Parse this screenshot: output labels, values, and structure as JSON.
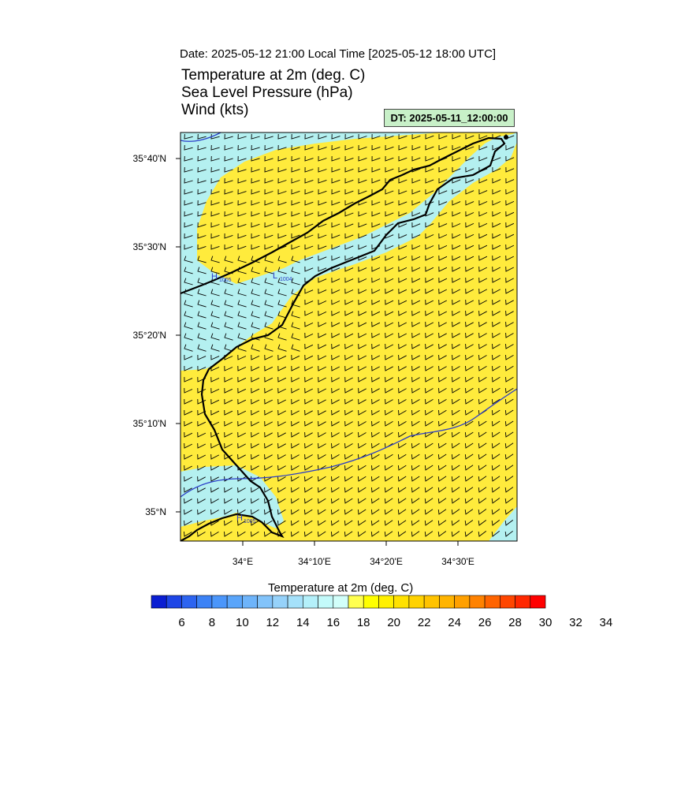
{
  "header": {
    "date_line": "Date: 2025-05-12  21:00 Local Time [2025-05-12  18:00 UTC]",
    "title_lines": [
      "Temperature at 2m   (deg. C)",
      "Sea Level Pressure   (hPa)",
      "Wind   (kts)"
    ],
    "dt_label": "DT: 2025-05-11_12:00:00"
  },
  "map": {
    "lat_labels": [
      "35°40'N",
      "35°30'N",
      "35°20'N",
      "35°10'N",
      "35°N"
    ],
    "lon_labels": [
      "34°E",
      "34°10'E",
      "34°20'E",
      "34°30'E"
    ],
    "pressure_markers": [
      {
        "symbol": "H",
        "value": "1005"
      },
      {
        "symbol": "L",
        "value": "1004"
      },
      {
        "symbol": "H",
        "value": "1005"
      }
    ],
    "colors": {
      "sea_cool": "#b4f0f0",
      "land_warm": "#ffeb3c",
      "coast": "#000000",
      "isobar": "#2a3cc8",
      "barb": "#000000"
    }
  },
  "colorbar": {
    "title": "Temperature at 2m  (deg. C)",
    "tick_labels": [
      "6",
      "8",
      "10",
      "12",
      "14",
      "16",
      "18",
      "20",
      "22",
      "24",
      "26",
      "28",
      "30",
      "32",
      "34"
    ],
    "colors": [
      "#0a1ed2",
      "#1e46e6",
      "#2d64f0",
      "#3c82f5",
      "#4b96fa",
      "#5aa5fa",
      "#6eb4fa",
      "#82c3fa",
      "#96d2fa",
      "#a5e1fa",
      "#b4f0fa",
      "#c3fafa",
      "#d2fffa",
      "#ffff50",
      "#ffff00",
      "#fff000",
      "#ffe100",
      "#ffd200",
      "#ffc300",
      "#ffb400",
      "#ffa000",
      "#ff8200",
      "#ff6400",
      "#ff4600",
      "#ff2800",
      "#ff0000"
    ]
  }
}
